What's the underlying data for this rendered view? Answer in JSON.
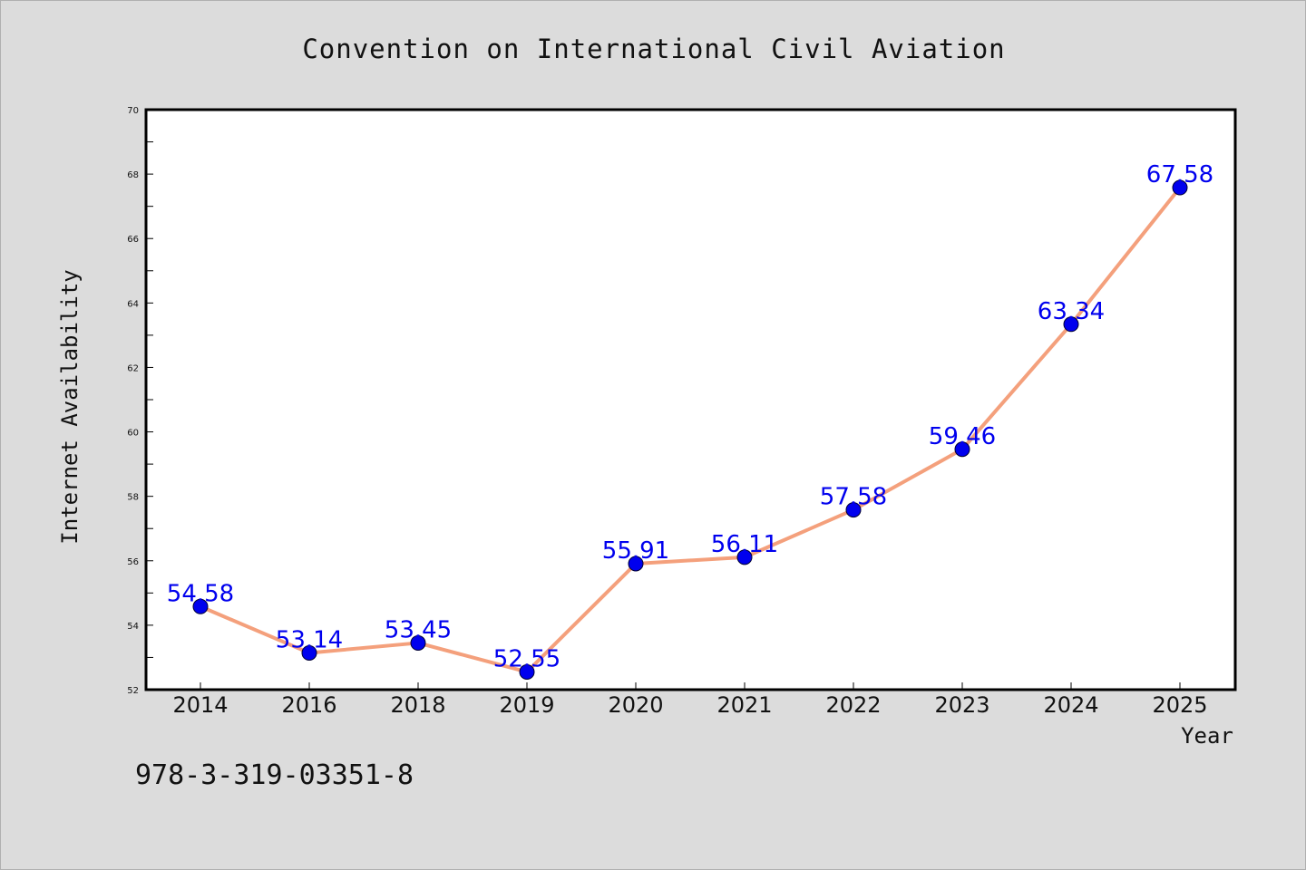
{
  "chart_data": {
    "type": "line",
    "title": "Convention on International Civil Aviation",
    "xlabel": "Year",
    "ylabel": "Internet Availability",
    "categories": [
      "2014",
      "2016",
      "2018",
      "2019",
      "2020",
      "2021",
      "2022",
      "2023",
      "2024",
      "2025"
    ],
    "series": [
      {
        "values": [
          54.58,
          53.14,
          53.45,
          52.55,
          55.91,
          56.11,
          57.58,
          59.46,
          63.34,
          67.58
        ]
      }
    ],
    "data_labels": [
      "54.58",
      "53.14",
      "53.45",
      "52.55",
      "55.91",
      "56.11",
      "57.58",
      "59.46",
      "63.34",
      "67.58"
    ],
    "ylim": [
      52,
      70
    ],
    "yticks": [
      52,
      54,
      56,
      58,
      60,
      62,
      64,
      66,
      68,
      70
    ],
    "grid": false,
    "line_color": "#f4a07c",
    "marker_color": "#0000ee",
    "label_color": "#0000ee"
  },
  "footnote": "978-3-319-03351-8"
}
